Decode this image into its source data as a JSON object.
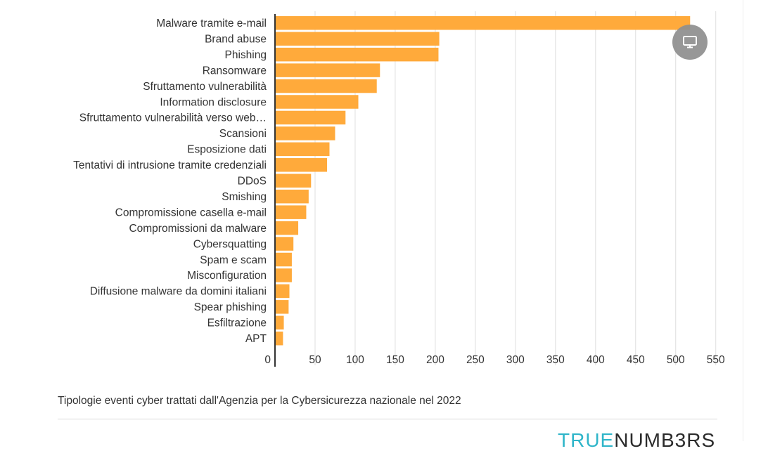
{
  "chart_data": {
    "type": "bar",
    "orientation": "horizontal",
    "categories": [
      "Malware tramite e-mail",
      "Brand abuse",
      "Phishing",
      "Ransomware",
      "Sfruttamento vulnerabilità",
      "Information disclosure",
      "Sfruttamento vulnerabilità verso web…",
      "Scansioni",
      "Esposizione dati",
      "Tentativi di intrusione tramite credenziali",
      "DDoS",
      "Smishing",
      "Compromissione casella e-mail",
      "Compromissioni da malware",
      "Cybersquatting",
      "Spam e scam",
      "Misconfiguration",
      "Diffusione malware da domini italiani",
      "Spear phishing",
      "Esfiltrazione",
      "APT"
    ],
    "values": [
      518,
      205,
      204,
      131,
      127,
      104,
      88,
      75,
      68,
      65,
      45,
      42,
      39,
      29,
      23,
      21,
      21,
      18,
      17,
      11,
      10
    ],
    "xlim": [
      0,
      550
    ],
    "xticks": [
      0,
      50,
      100,
      150,
      200,
      250,
      300,
      350,
      400,
      450,
      500,
      550
    ],
    "grid": true,
    "bar_color": "#ffaa3b",
    "grid_color": "#dedede",
    "axis_color": "#333333"
  },
  "caption": "Tipologie eventi cyber trattati dall'Agenzia per la Cybersicurezza nazionale nel 2022",
  "brand": {
    "part1": "TRUE",
    "part2": "NUMB3RS"
  },
  "screen_button": {
    "icon": "monitor-icon"
  }
}
